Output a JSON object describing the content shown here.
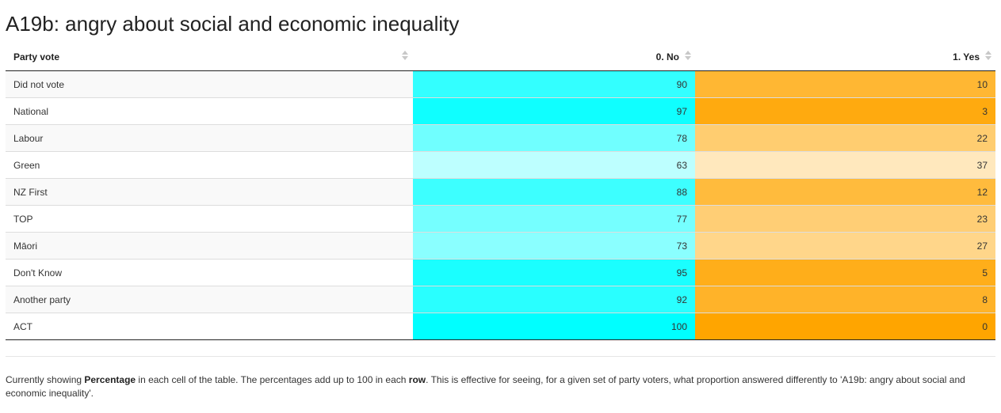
{
  "title": "A19b: angry about social and economic inequality",
  "table": {
    "headers": [
      "Party vote",
      "0. No",
      "1. Yes"
    ],
    "rows": [
      {
        "party": "Did not vote",
        "no": 90,
        "yes": 10
      },
      {
        "party": "National",
        "no": 97,
        "yes": 3
      },
      {
        "party": "Labour",
        "no": 78,
        "yes": 22
      },
      {
        "party": "Green",
        "no": 63,
        "yes": 37
      },
      {
        "party": "NZ First",
        "no": 88,
        "yes": 12
      },
      {
        "party": "TOP",
        "no": 77,
        "yes": 23
      },
      {
        "party": "Māori",
        "no": 73,
        "yes": 27
      },
      {
        "party": "Don't Know",
        "no": 95,
        "yes": 5
      },
      {
        "party": "Another party",
        "no": 92,
        "yes": 8
      },
      {
        "party": "ACT",
        "no": 100,
        "yes": 0
      }
    ]
  },
  "colors": {
    "no_full": "#00ffff",
    "yes_full": "#ffa500"
  },
  "footnote": {
    "part1": "Currently showing ",
    "bold1": "Percentage",
    "part2": " in each cell of the table. The percentages add up to 100 in each ",
    "bold2": "row",
    "part3": ". This is effective for seeing, for a given set of party voters, what proportion answered differently to 'A19b: angry about social and economic inequality'."
  }
}
